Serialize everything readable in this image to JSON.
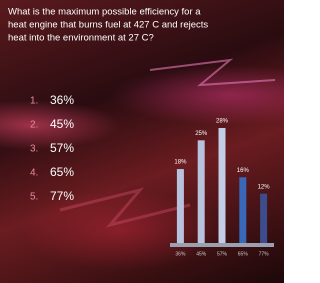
{
  "question": [
    "What is the maximum possible efficiency for a",
    "heat engine that burns fuel at 427 C and rejects",
    "heat into the environment at 27 C?"
  ],
  "options": [
    {
      "number": "1.",
      "text": "36%"
    },
    {
      "number": "2.",
      "text": "45%"
    },
    {
      "number": "3.",
      "text": "57%"
    },
    {
      "number": "4.",
      "text": "65%"
    },
    {
      "number": "5.",
      "text": "77%"
    }
  ],
  "chart_data": {
    "type": "bar",
    "categories": [
      "36%",
      "45%",
      "57%",
      "65%",
      "77%"
    ],
    "values": [
      18,
      25,
      28,
      16,
      12
    ],
    "value_labels": [
      "18%",
      "25%",
      "28%",
      "16%",
      "12%"
    ],
    "colors": [
      "#b8c2dc",
      "#b8c2dc",
      "#c4cde6",
      "#3a68b8",
      "#3d4c8c"
    ]
  }
}
